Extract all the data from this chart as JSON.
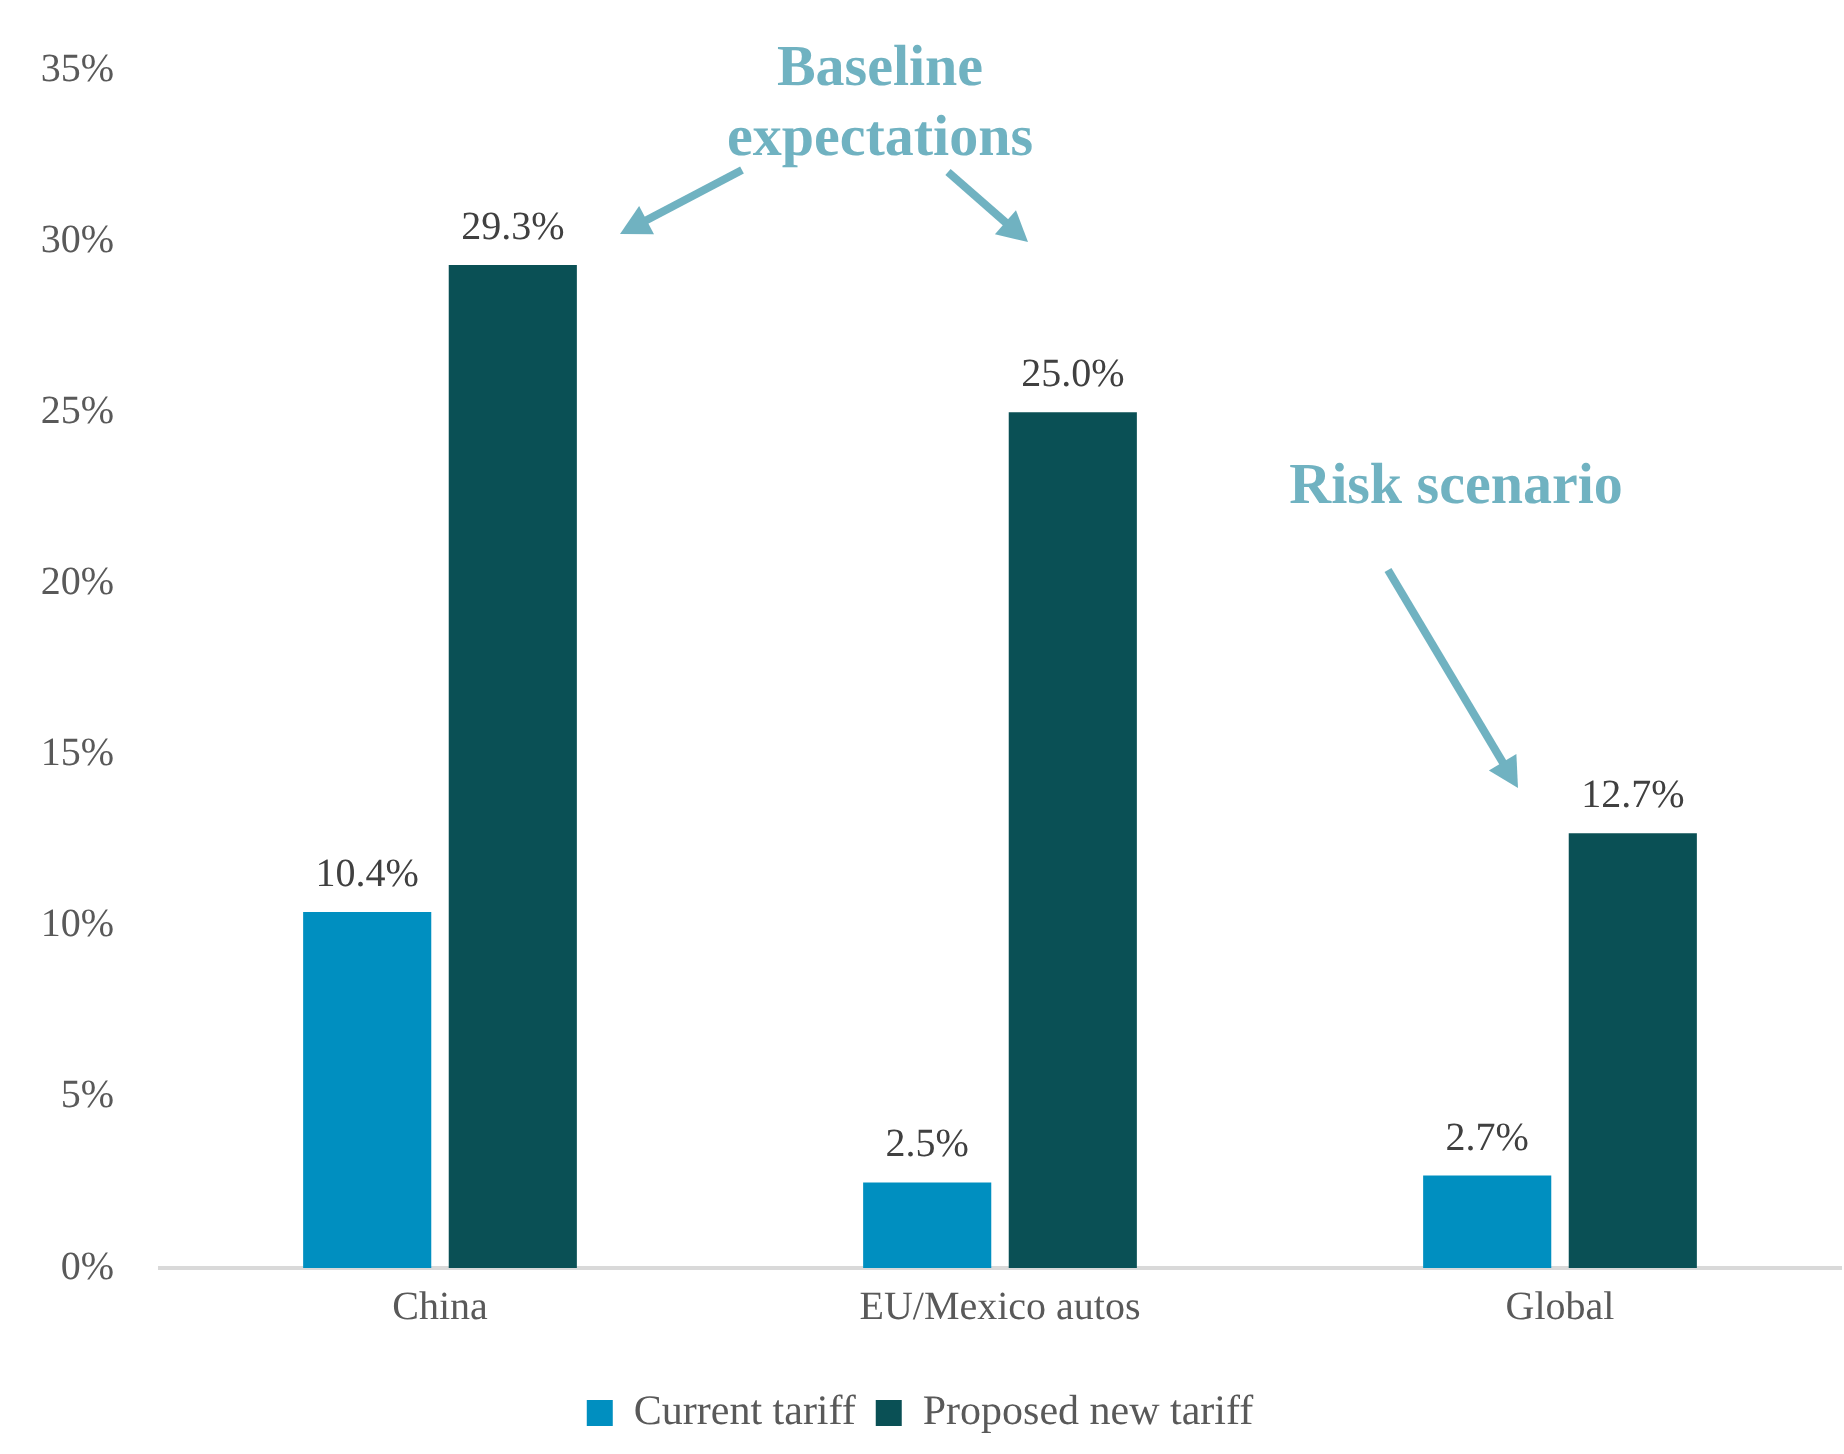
{
  "chart_data": {
    "type": "bar",
    "categories": [
      "China",
      "EU/Mexico autos",
      "Global"
    ],
    "series": [
      {
        "name": "Current tariff",
        "color": "#008fc0",
        "values": [
          10.4,
          2.5,
          2.7
        ],
        "value_labels": [
          "10.4%",
          "2.5%",
          "2.7%"
        ]
      },
      {
        "name": "Proposed new tariff",
        "color": "#0a5055",
        "values": [
          29.3,
          25.0,
          12.7
        ],
        "value_labels": [
          "29.3%",
          "25.0%",
          "12.7%"
        ]
      }
    ],
    "ylim": [
      0,
      35
    ],
    "yticks": [
      {
        "value": 0,
        "label": "0%"
      },
      {
        "value": 5,
        "label": "5%"
      },
      {
        "value": 10,
        "label": "10%"
      },
      {
        "value": 15,
        "label": "15%"
      },
      {
        "value": 20,
        "label": "20%"
      },
      {
        "value": 25,
        "label": "25%"
      },
      {
        "value": 30,
        "label": "30%"
      },
      {
        "value": 35,
        "label": "35%"
      }
    ],
    "grid": false,
    "legend": "bottom",
    "annotations": [
      "Baseline expectations",
      "Risk scenario"
    ]
  }
}
